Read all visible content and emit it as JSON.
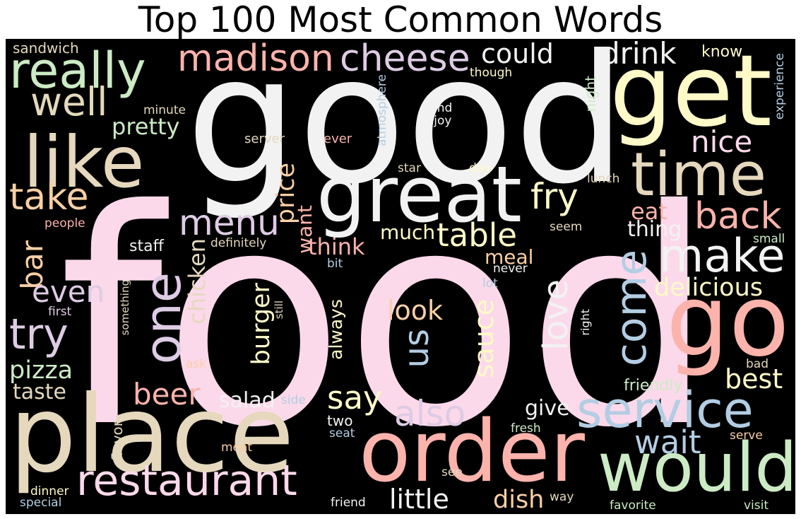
{
  "title": "Top 100 Most Common Words",
  "palette": {
    "pink": "#fbd9ea",
    "peach": "#f9cfa6",
    "salmon": "#fbb3ac",
    "yellow": "#fffac8",
    "green": "#ccebc5",
    "blue": "#b3cde3",
    "lavender": "#decbe4",
    "tan": "#e5d8bd",
    "white": "#f2f2f2"
  },
  "words": [
    "food",
    "good",
    "place",
    "get",
    "great",
    "order",
    "go",
    "time",
    "would",
    "like",
    "really",
    "service",
    "restaurant",
    "one",
    "make",
    "madison",
    "cheese",
    "take",
    "back",
    "well",
    "menu",
    "come",
    "try",
    "table",
    "fry",
    "also",
    "say",
    "nice",
    "drink",
    "love",
    "little",
    "beer",
    "bar",
    "pretty",
    "could",
    "even",
    "delicious",
    "pizza",
    "price",
    "best",
    "sauce",
    "want",
    "look",
    "us",
    "burger",
    "thing",
    "eat",
    "much",
    "think",
    "taste",
    "chicken",
    "salad",
    "dish",
    "wait",
    "give",
    "meal",
    "always",
    "friendly",
    "staff",
    "sandwich",
    "know",
    "experience",
    "night",
    "though",
    "minute",
    "find",
    "enjoy",
    "server",
    "ever",
    "atmosphere",
    "star",
    "day",
    "lunch",
    "people",
    "seem",
    "definitely",
    "small",
    "bit",
    "never",
    "lot",
    "first",
    "something",
    "still",
    "right",
    "ask",
    "bad",
    "side",
    "flavor",
    "two",
    "seat",
    "fresh",
    "serve",
    "meat",
    "see",
    "dinner",
    "special",
    "friend",
    "way",
    "favorite",
    "visit"
  ]
}
